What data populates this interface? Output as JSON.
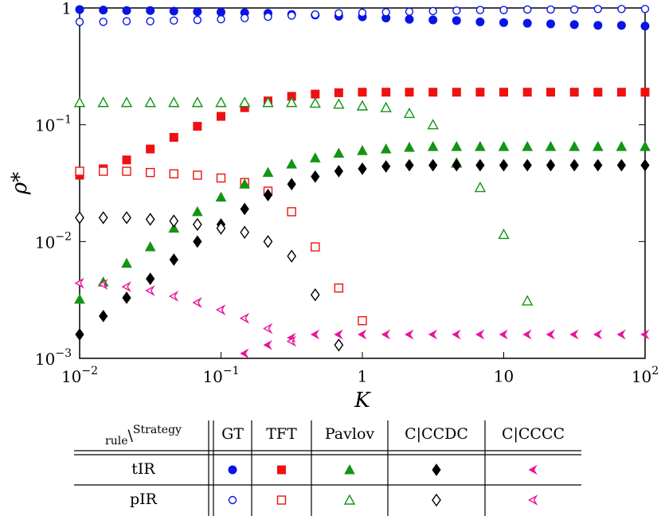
{
  "chart_data": {
    "type": "scatter",
    "xlabel": "K",
    "ylabel": "ρ*",
    "xscale": "log",
    "yscale": "log",
    "xlim": [
      0.01,
      100
    ],
    "ylim": [
      0.001,
      1
    ],
    "xticks": [
      {
        "value": 0.01,
        "label": "10",
        "sup": "−2"
      },
      {
        "value": 0.1,
        "label": "10",
        "sup": "−1"
      },
      1,
      10,
      {
        "value": 100,
        "label": "10",
        "sup": "2"
      }
    ],
    "yticks": [
      {
        "value": 0.001,
        "label": "10",
        "sup": "−3"
      },
      {
        "value": 0.01,
        "label": "10",
        "sup": "−2"
      },
      {
        "value": 0.1,
        "label": "10",
        "sup": "−1"
      },
      1
    ],
    "x": [
      0.01,
      0.0147,
      0.0215,
      0.0316,
      0.0464,
      0.0681,
      0.1,
      0.147,
      0.215,
      0.316,
      0.464,
      0.681,
      1,
      1.47,
      2.15,
      3.16,
      4.64,
      6.81,
      10,
      14.7,
      21.5,
      31.6,
      46.4,
      68.1,
      100
    ],
    "legend_corner": {
      "sub": "rule",
      "sep": "\\",
      "sup": "Strategy"
    },
    "rules": [
      {
        "name": "tIR",
        "filled": true
      },
      {
        "name": "pIR",
        "filled": false
      }
    ],
    "series": [
      {
        "name": "GT",
        "color": "#0a14e6",
        "marker": "circle",
        "values_by_rule": [
          [
            0.97,
            0.96,
            0.95,
            0.95,
            0.94,
            0.93,
            0.92,
            0.91,
            0.9,
            0.88,
            0.87,
            0.85,
            0.84,
            0.82,
            0.8,
            0.79,
            0.78,
            0.76,
            0.75,
            0.74,
            0.73,
            0.72,
            0.71,
            0.71,
            0.7
          ],
          [
            0.76,
            0.76,
            0.77,
            0.77,
            0.78,
            0.79,
            0.8,
            0.82,
            0.84,
            0.86,
            0.88,
            0.9,
            0.91,
            0.92,
            0.93,
            0.94,
            0.95,
            0.96,
            0.96,
            0.97,
            0.97,
            0.97,
            0.98,
            0.98,
            0.98
          ]
        ]
      },
      {
        "name": "TFT",
        "color": "#ee1111",
        "marker": "square",
        "values_by_rule": [
          [
            0.037,
            0.042,
            0.05,
            0.062,
            0.078,
            0.097,
            0.118,
            0.14,
            0.16,
            0.175,
            0.183,
            0.188,
            0.19,
            0.19,
            0.19,
            0.19,
            0.19,
            0.19,
            0.19,
            0.19,
            0.19,
            0.19,
            0.19,
            0.19,
            0.19
          ],
          [
            0.04,
            0.04,
            0.04,
            0.039,
            0.038,
            0.037,
            0.035,
            0.032,
            0.027,
            0.018,
            0.009,
            0.004,
            0.0021,
            null,
            null,
            null,
            null,
            null,
            null,
            null,
            null,
            null,
            null,
            null,
            null
          ]
        ]
      },
      {
        "name": "Pavlov",
        "color": "#149414",
        "marker": "triangle",
        "values_by_rule": [
          [
            0.0032,
            0.0045,
            0.0065,
            0.009,
            0.013,
            0.018,
            0.024,
            0.031,
            0.039,
            0.046,
            0.052,
            0.057,
            0.06,
            0.062,
            0.064,
            0.065,
            0.065,
            0.065,
            0.065,
            0.065,
            0.065,
            0.065,
            0.065,
            0.065,
            0.065
          ],
          [
            0.155,
            0.155,
            0.155,
            0.155,
            0.155,
            0.155,
            0.155,
            0.155,
            0.155,
            0.155,
            0.153,
            0.15,
            0.145,
            0.14,
            0.125,
            0.1,
            0.047,
            0.029,
            0.0115,
            0.0031,
            null,
            null,
            null,
            null,
            null
          ]
        ]
      },
      {
        "name": "C|CCDC",
        "color": "#000000",
        "marker": "diamond",
        "values_by_rule": [
          [
            0.0016,
            0.0023,
            0.0033,
            0.0048,
            0.007,
            0.01,
            0.014,
            0.019,
            0.025,
            0.031,
            0.036,
            0.04,
            0.042,
            0.044,
            0.045,
            0.045,
            0.045,
            0.045,
            0.045,
            0.045,
            0.045,
            0.045,
            0.045,
            0.045,
            0.045
          ],
          [
            0.016,
            0.016,
            0.016,
            0.0155,
            0.015,
            0.014,
            0.013,
            0.012,
            0.01,
            0.0075,
            0.0035,
            0.0013,
            null,
            null,
            null,
            null,
            null,
            null,
            null,
            null,
            null,
            null,
            null,
            null,
            null
          ]
        ]
      },
      {
        "name": "C|CCCC",
        "color": "#e8149a",
        "marker": "arrow",
        "values_by_rule": [
          [
            null,
            null,
            null,
            null,
            null,
            null,
            null,
            0.0011,
            0.0013,
            0.0015,
            0.0016,
            0.0016,
            0.0016,
            0.0016,
            0.0016,
            0.0016,
            0.0016,
            0.0016,
            0.0016,
            0.0016,
            0.0016,
            0.0016,
            0.0016,
            0.0016,
            0.0016
          ],
          [
            0.0044,
            0.0043,
            0.0041,
            0.0038,
            0.0034,
            0.003,
            0.0026,
            0.0022,
            0.0018,
            0.0014,
            null,
            null,
            null,
            null,
            null,
            null,
            null,
            null,
            null,
            null,
            null,
            null,
            null,
            null,
            null
          ]
        ]
      }
    ]
  }
}
